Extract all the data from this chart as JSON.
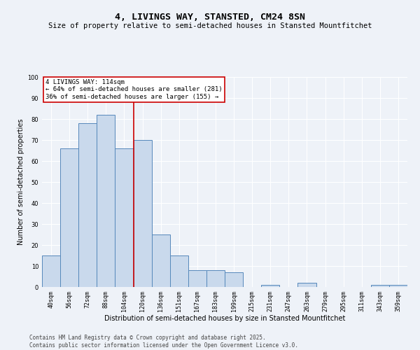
{
  "title": "4, LIVINGS WAY, STANSTED, CM24 8SN",
  "subtitle": "Size of property relative to semi-detached houses in Stansted Mountfitchet",
  "xlabel": "Distribution of semi-detached houses by size in Stansted Mountfitchet",
  "ylabel": "Number of semi-detached properties",
  "categories": [
    "40sqm",
    "56sqm",
    "72sqm",
    "88sqm",
    "104sqm",
    "120sqm",
    "136sqm",
    "151sqm",
    "167sqm",
    "183sqm",
    "199sqm",
    "215sqm",
    "231sqm",
    "247sqm",
    "263sqm",
    "279sqm",
    "295sqm",
    "311sqm",
    "343sqm",
    "359sqm"
  ],
  "values": [
    15,
    66,
    78,
    82,
    66,
    70,
    25,
    15,
    8,
    8,
    7,
    0,
    1,
    0,
    2,
    0,
    0,
    0,
    1,
    1
  ],
  "bar_color": "#c9d9ec",
  "bar_edge_color": "#5588bb",
  "vline_x_idx": 4,
  "vline_color": "#cc0000",
  "annotation_title": "4 LIVINGS WAY: 114sqm",
  "annotation_line1": "← 64% of semi-detached houses are smaller (281)",
  "annotation_line2": "36% of semi-detached houses are larger (155) →",
  "annotation_box_color": "#ffffff",
  "annotation_box_edge": "#cc0000",
  "ylim": [
    0,
    100
  ],
  "yticks": [
    0,
    10,
    20,
    30,
    40,
    50,
    60,
    70,
    80,
    90,
    100
  ],
  "footer": "Contains HM Land Registry data © Crown copyright and database right 2025.\nContains public sector information licensed under the Open Government Licence v3.0.",
  "bg_color": "#eef2f8",
  "grid_color": "#ffffff",
  "title_fontsize": 9.5,
  "subtitle_fontsize": 7.5,
  "axis_label_fontsize": 7,
  "tick_fontsize": 6,
  "annotation_fontsize": 6.5,
  "footer_fontsize": 5.5
}
